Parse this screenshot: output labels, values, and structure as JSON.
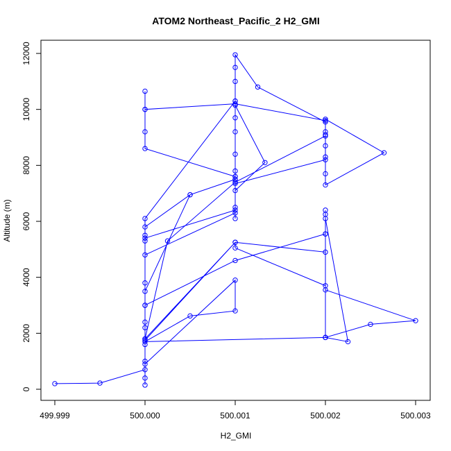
{
  "chart_data": {
    "type": "line",
    "title": "ATOM2 Northeast_Pacific_2 H2_GMI",
    "xlabel": "H2_GMI",
    "ylabel": "Altitude (m)",
    "xlim": [
      499.999,
      500.003
    ],
    "ylim": [
      0,
      12000
    ],
    "xticks": [
      499.999,
      500.0,
      500.001,
      500.002,
      500.003
    ],
    "xtick_labels": [
      "499.999",
      "500.000",
      "500.001",
      "500.002",
      "500.003"
    ],
    "yticks": [
      0,
      2000,
      4000,
      6000,
      8000,
      10000,
      12000
    ],
    "ytick_labels": [
      "0",
      "2000",
      "4000",
      "6000",
      "8000",
      "10000",
      "12000"
    ],
    "grid": false,
    "colors": {
      "series": "#0000ff"
    },
    "series": [
      {
        "x": [
          499.999,
          499.9995,
          500.0,
          500.0,
          500.0,
          500.0,
          500.0,
          500.0,
          500.0,
          500.0,
          500.0005,
          500.001,
          500.001,
          500.001,
          500.001,
          500.001,
          500.001,
          500.001,
          500.001,
          500.001,
          500.001,
          500.00125,
          500.002,
          500.002,
          500.002,
          500.002,
          500.002,
          500.00265,
          500.002,
          500.002,
          500.002,
          500.002,
          500.001,
          500.001,
          500.0,
          500.0,
          500.0,
          500.0,
          500.0,
          500.001,
          500.002,
          500.002,
          500.001,
          500.00025,
          500.0,
          500.0,
          500.0,
          500.001,
          500.001,
          500.001,
          500.001,
          500.00133,
          500.001,
          500.001,
          500.0,
          500.0,
          500.0,
          500.0,
          500.0005,
          500.001,
          500.001,
          500.0,
          500.0,
          500.0,
          500.001,
          500.002,
          500.002,
          500.002,
          500.002,
          500.0025,
          500.003,
          500.002,
          500.002,
          500.001,
          500.001,
          500.0,
          500.0,
          500.001,
          500.002,
          500.002,
          500.002,
          500.00225,
          500.002,
          500.002,
          500.0,
          500.0005,
          500.001,
          500.001,
          500.0
        ],
        "y": [
          200,
          220,
          700,
          150,
          400,
          1000,
          1600,
          2400,
          3000,
          3500,
          6950,
          7500,
          7600,
          7800,
          8400,
          9200,
          9700,
          10300,
          11000,
          11500,
          11950,
          10800,
          9550,
          9100,
          8300,
          7700,
          7300,
          8450,
          9650,
          9200,
          8700,
          8200,
          7350,
          7600,
          8600,
          9200,
          10000,
          10650,
          10000,
          10200,
          9600,
          9050,
          7400,
          5300,
          1800,
          2200,
          4800,
          6300,
          6500,
          6100,
          7100,
          8100,
          10150,
          10300,
          6100,
          5300,
          5500,
          5800,
          6950,
          7500,
          6400,
          5400,
          3800,
          3000,
          4600,
          5550,
          6250,
          6400,
          1850,
          2320,
          2450,
          3550,
          3700,
          5050,
          5250,
          1750,
          1800,
          5250,
          4900,
          5550,
          6100,
          1700,
          1850,
          1850,
          1700,
          2620,
          2800,
          3900,
          900
        ]
      }
    ]
  }
}
